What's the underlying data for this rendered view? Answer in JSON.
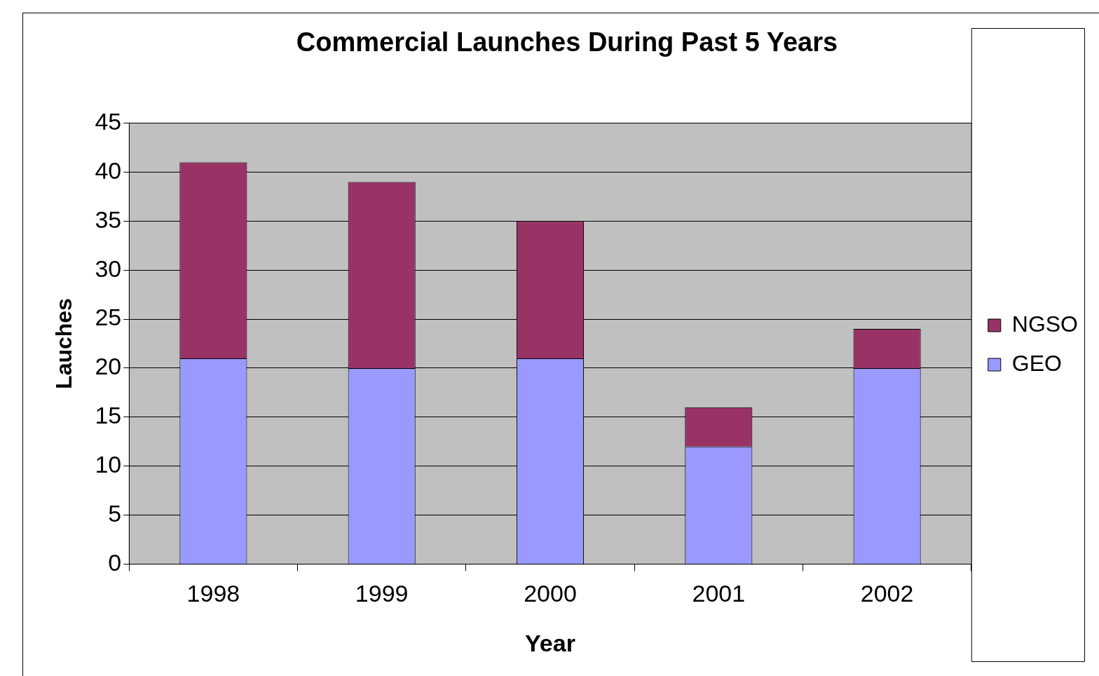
{
  "chart_data": {
    "type": "bar",
    "title": "Commercial Launches During Past 5 Years",
    "xlabel": "Year",
    "ylabel": "Lauches",
    "categories": [
      "1998",
      "1999",
      "2000",
      "2001",
      "2002"
    ],
    "series": [
      {
        "name": "GEO",
        "color": "#9999ff",
        "values": [
          21,
          20,
          21,
          12,
          20
        ]
      },
      {
        "name": "NGSO",
        "color": "#993366",
        "values": [
          20,
          19,
          14,
          4,
          4
        ]
      }
    ],
    "stacked": true,
    "ylim": [
      0,
      45
    ],
    "yticks": [
      0,
      5,
      10,
      15,
      20,
      25,
      30,
      35,
      40,
      45
    ],
    "grid": "y",
    "legend": "right"
  }
}
